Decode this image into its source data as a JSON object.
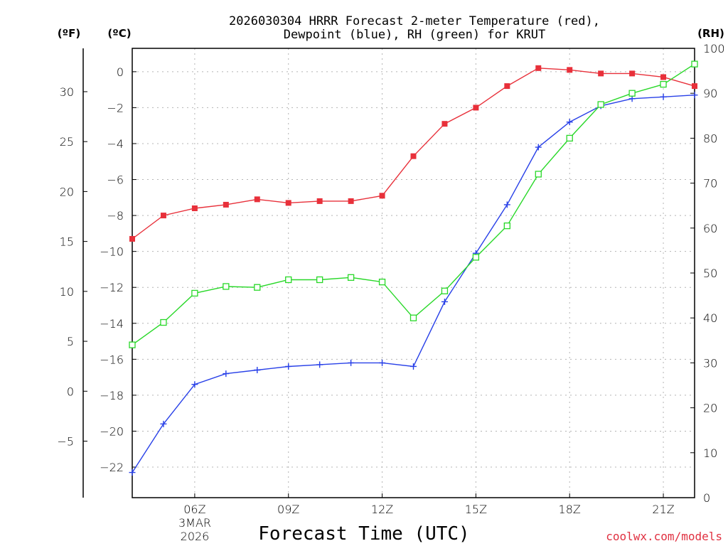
{
  "chart_data": {
    "type": "line",
    "title_line1": "2026030304 HRRR Forecast 2-meter Temperature (red),",
    "title_line2": "Dewpoint (blue), RH (green) for KRUT",
    "xlabel": "Forecast Time (UTC)",
    "credit": "coolwx.com/models",
    "units": {
      "fahrenheit": "(ºF)",
      "celsius": "(ºC)",
      "rh": "(RH)"
    },
    "x_hours": [
      4,
      5,
      6,
      7,
      8,
      9,
      10,
      11,
      12,
      13,
      14,
      15,
      16,
      17,
      18,
      19,
      20,
      21,
      22
    ],
    "xlim": [
      4,
      22
    ],
    "x_ticks": [
      {
        "hour": 6,
        "label": "06Z"
      },
      {
        "hour": 9,
        "label": "09Z"
      },
      {
        "hour": 12,
        "label": "12Z"
      },
      {
        "hour": 15,
        "label": "15Z"
      },
      {
        "hour": 18,
        "label": "18Z"
      },
      {
        "hour": 21,
        "label": "21Z"
      }
    ],
    "date_label": {
      "line1": "3MAR",
      "line2": "2026"
    },
    "celsius_axis": {
      "range": [
        -23.7,
        1.3
      ],
      "ticks": [
        0,
        -2,
        -4,
        -6,
        -8,
        -10,
        -12,
        -14,
        -16,
        -18,
        -20,
        -22
      ]
    },
    "fahrenheit_axis": {
      "ticks": [
        30,
        25,
        20,
        15,
        10,
        5,
        0,
        -5
      ]
    },
    "rh_axis": {
      "range": [
        0,
        100
      ],
      "ticks": [
        100,
        90,
        80,
        70,
        60,
        50,
        40,
        30,
        20,
        10,
        0
      ]
    },
    "series": [
      {
        "name": "Temperature",
        "units": "C",
        "color": "#e8303a",
        "marker": "filled-square",
        "values": [
          -9.3,
          -8.0,
          -7.6,
          -7.4,
          -7.1,
          -7.3,
          -7.2,
          -7.2,
          -6.9,
          -4.7,
          -2.9,
          -2.0,
          -0.8,
          0.2,
          0.1,
          -0.1,
          -0.1,
          -0.3,
          -0.8
        ]
      },
      {
        "name": "Dewpoint",
        "units": "C",
        "color": "#2840e8",
        "marker": "plus",
        "values": [
          -22.3,
          -19.6,
          -17.4,
          -16.8,
          -16.6,
          -16.4,
          -16.3,
          -16.2,
          -16.2,
          -16.4,
          -12.8,
          -10.1,
          -7.4,
          -4.2,
          -2.8,
          -1.9,
          -1.5,
          -1.4,
          -1.3
        ]
      },
      {
        "name": "RH",
        "units": "%",
        "color": "#28d828",
        "marker": "open-square",
        "values": [
          34,
          39,
          45.5,
          47,
          46.8,
          48.5,
          48.5,
          49,
          48,
          40,
          46,
          53.5,
          60.5,
          72,
          80,
          87.5,
          90,
          92,
          96.5
        ]
      }
    ]
  }
}
